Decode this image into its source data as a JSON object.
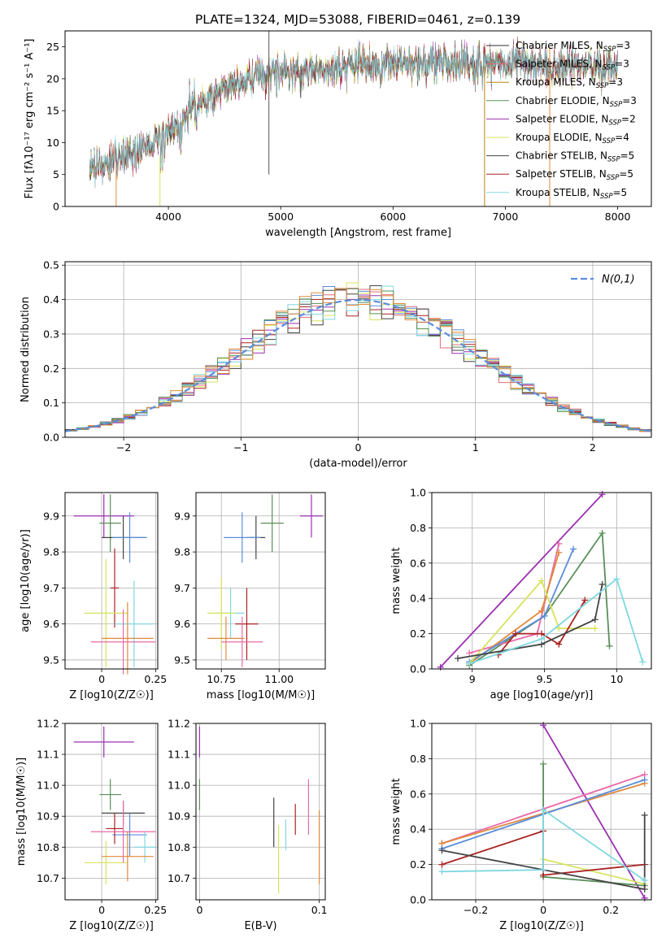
{
  "figure": {
    "title": "PLATE=1324, MJD=53088, FIBERID=0461, z=0.139"
  },
  "chart_data": [
    {
      "type": "line",
      "id": "spectrum",
      "title": "PLATE=1324, MJD=53088, FIBERID=0461, z=0.139",
      "xlabel": "wavelength [Angstrom, rest frame]",
      "ylabel": "Flux [fλ10⁻¹⁷ erg cm⁻² s⁻¹ A⁻¹]",
      "xlim": [
        3080,
        8300
      ],
      "ylim": [
        0,
        27.5
      ],
      "xticks": [
        4000,
        5000,
        6000,
        7000,
        8000
      ],
      "yticks": [
        0,
        5,
        10,
        15,
        20,
        25
      ],
      "grid": false,
      "legend_position": "top-right",
      "continuum": {
        "x": [
          3300,
          3500,
          3700,
          3900,
          4000,
          4200,
          4400,
          4600,
          4800,
          5000,
          5200,
          5500,
          5800,
          6100,
          6400,
          6700,
          7000,
          7300,
          7600,
          8000
        ],
        "y": [
          6.2,
          6.8,
          8.5,
          10.5,
          12.0,
          15.0,
          17.5,
          19.0,
          20.5,
          21.0,
          21.0,
          21.5,
          22.5,
          22.5,
          22.5,
          22.5,
          22.5,
          22.0,
          22.0,
          21.5
        ]
      },
      "series": [
        {
          "name": "Chabrier MILES, N_SSP=3",
          "label_main": "Chabrier MILES, N",
          "label_sub": "SSP",
          "label_tail": "=3",
          "color": "#2e2e2e"
        },
        {
          "name": "Salpeter MILES, N_SSP=3",
          "label_main": "Salpeter MILES, N",
          "label_sub": "SSP",
          "label_tail": "=3",
          "color": "#e06c75"
        },
        {
          "name": "Kroupa MILES, N_SSP=3",
          "label_main": "Kroupa MILES, N",
          "label_sub": "SSP",
          "label_tail": "=3",
          "color": "#b8860b"
        },
        {
          "name": "Chabrier ELODIE, N_SSP=3",
          "label_main": "Chabrier ELODIE, N",
          "label_sub": "SSP",
          "label_tail": "=3",
          "color": "#5a8f5a"
        },
        {
          "name": "Salpeter ELODIE, N_SSP=2",
          "label_main": "Salpeter ELODIE, N",
          "label_sub": "SSP",
          "label_tail": "=2",
          "color": "#9b30b0"
        },
        {
          "name": "Kroupa ELODIE, N_SSP=4",
          "label_main": "Kroupa ELODIE, N",
          "label_sub": "SSP",
          "label_tail": "=4",
          "color": "#d7e35a"
        },
        {
          "name": "Chabrier STELIB, N_SSP=5",
          "label_main": "Chabrier STELIB, N",
          "label_sub": "SSP",
          "label_tail": "=5",
          "color": "#444444"
        },
        {
          "name": "Salpeter STELIB, N_SSP=5",
          "label_main": "Salpeter STELIB, N",
          "label_sub": "SSP",
          "label_tail": "=5",
          "color": "#aa2222"
        },
        {
          "name": "Kroupa STELIB, N_SSP=5",
          "label_main": "Kroupa STELIB, N",
          "label_sub": "SSP",
          "label_tail": "=5",
          "color": "#7fd8e0"
        }
      ]
    },
    {
      "type": "bar",
      "id": "residual-histogram",
      "xlabel": "(data-model)/error",
      "ylabel": "Normed distribution",
      "xlim": [
        -2.5,
        2.5
      ],
      "ylim": [
        0,
        0.51
      ],
      "xticks": [
        -2,
        -1,
        0,
        1,
        2
      ],
      "yticks": [
        0.0,
        0.1,
        0.2,
        0.3,
        0.4,
        0.5
      ],
      "grid": true,
      "legend_position": "top-right",
      "reference_curve": {
        "name": "N(0,1)",
        "color": "#5b8dd9",
        "style": "dashed"
      },
      "bins": 50,
      "series_colors": [
        "#e06c75",
        "#5b8dd9",
        "#d7e35a",
        "#9b30b0",
        "#aa2222",
        "#444444",
        "#7fd8e0",
        "#5a8f5a",
        "#e08a3a"
      ]
    },
    {
      "type": "scatter",
      "id": "age-vs-metallicity",
      "xlabel": "Z [log10(Z/Z☉)]",
      "ylabel": "age [log10(age/yr)]",
      "xlim": [
        -0.17,
        0.26
      ],
      "ylim": [
        9.475,
        9.965
      ],
      "xticks": [
        0.0,
        0.25
      ],
      "yticks": [
        9.5,
        9.6,
        9.7,
        9.8,
        9.9
      ],
      "grid": true,
      "points": [
        {
          "x": 0.01,
          "xerr": 0.14,
          "y": 9.9,
          "yerr": 0.06,
          "color": "#9b30b0"
        },
        {
          "x": 0.04,
          "xerr": 0.05,
          "y": 9.88,
          "yerr": 0.08,
          "color": "#5a8f5a"
        },
        {
          "x": 0.1,
          "xerr": 0.1,
          "y": 9.84,
          "yerr": 0.06,
          "color": "#444444"
        },
        {
          "x": 0.13,
          "xerr": 0.08,
          "y": 9.84,
          "yerr": 0.07,
          "color": "#5b8dd9"
        },
        {
          "x": 0.06,
          "xerr": 0.02,
          "y": 9.7,
          "yerr": 0.11,
          "color": "#aa2222"
        },
        {
          "x": 0.15,
          "xerr": 0.09,
          "y": 9.6,
          "yerr": 0.12,
          "color": "#7fd8e0"
        },
        {
          "x": 0.02,
          "xerr": 0.1,
          "y": 9.63,
          "yerr": 0.15,
          "color": "#d7e35a"
        },
        {
          "x": 0.12,
          "xerr": 0.12,
          "y": 9.56,
          "yerr": 0.1,
          "color": "#e08a3a"
        },
        {
          "x": 0.1,
          "xerr": 0.15,
          "y": 9.55,
          "yerr": 0.09,
          "color": "#e96aa9"
        }
      ]
    },
    {
      "type": "scatter",
      "id": "age-vs-mass",
      "xlabel": "mass [log10(M/M☉)]",
      "ylabel": "",
      "xlim": [
        10.64,
        11.2
      ],
      "ylim": [
        9.475,
        9.965
      ],
      "xticks": [
        10.75,
        11.0
      ],
      "tick_labels": [
        "10.75",
        "11.00"
      ],
      "yticks": [
        9.5,
        9.6,
        9.7,
        9.8,
        9.9
      ],
      "grid": true,
      "points": [
        {
          "x": 11.14,
          "xerr": 0.05,
          "y": 9.9,
          "yerr": 0.06,
          "color": "#9b30b0"
        },
        {
          "x": 10.97,
          "xerr": 0.05,
          "y": 9.88,
          "yerr": 0.08,
          "color": "#5a8f5a"
        },
        {
          "x": 10.9,
          "xerr": 0.04,
          "y": 9.84,
          "yerr": 0.06,
          "color": "#444444"
        },
        {
          "x": 10.84,
          "xerr": 0.08,
          "y": 9.84,
          "yerr": 0.07,
          "color": "#5b8dd9"
        },
        {
          "x": 10.86,
          "xerr": 0.05,
          "y": 9.6,
          "yerr": 0.1,
          "color": "#aa2222"
        },
        {
          "x": 10.79,
          "xerr": 0.06,
          "y": 9.63,
          "yerr": 0.07,
          "color": "#7fd8e0"
        },
        {
          "x": 10.75,
          "xerr": 0.06,
          "y": 9.63,
          "yerr": 0.1,
          "color": "#d7e35a"
        },
        {
          "x": 10.77,
          "xerr": 0.08,
          "y": 9.56,
          "yerr": 0.06,
          "color": "#e08a3a"
        },
        {
          "x": 10.84,
          "xerr": 0.09,
          "y": 9.55,
          "yerr": 0.07,
          "color": "#e96aa9"
        }
      ]
    },
    {
      "type": "line",
      "id": "mass-weight-vs-age",
      "xlabel": "age [log10(age/yr)]",
      "ylabel": "mass weight",
      "xlim": [
        8.72,
        10.24
      ],
      "ylim": [
        0,
        1.0
      ],
      "xticks": [
        9.0,
        9.5,
        10.0
      ],
      "yticks": [
        0.0,
        0.2,
        0.4,
        0.6,
        0.8,
        1.0
      ],
      "grid": true,
      "series": [
        {
          "color": "#9b30b0",
          "x": [
            8.78,
            9.9
          ],
          "y": [
            0.01,
            0.99
          ]
        },
        {
          "color": "#5a8f5a",
          "x": [
            8.98,
            9.5,
            9.9,
            9.95
          ],
          "y": [
            0.02,
            0.3,
            0.77,
            0.13
          ]
        },
        {
          "color": "#e96aa9",
          "x": [
            8.98,
            9.45,
            9.6
          ],
          "y": [
            0.09,
            0.2,
            0.71
          ]
        },
        {
          "color": "#e08a3a",
          "x": [
            8.98,
            9.48,
            9.6
          ],
          "y": [
            0.03,
            0.33,
            0.66
          ]
        },
        {
          "color": "#5b8dd9",
          "x": [
            8.98,
            9.5,
            9.7
          ],
          "y": [
            0.04,
            0.3,
            0.68
          ]
        },
        {
          "color": "#d7e35a",
          "x": [
            8.98,
            9.48,
            9.6,
            9.85
          ],
          "y": [
            0.03,
            0.5,
            0.23,
            0.23
          ]
        },
        {
          "color": "#aa2222",
          "x": [
            9.18,
            9.3,
            9.48,
            9.6,
            9.78
          ],
          "y": [
            0.08,
            0.2,
            0.2,
            0.14,
            0.39
          ]
        },
        {
          "color": "#444444",
          "x": [
            8.9,
            9.48,
            9.85,
            9.9
          ],
          "y": [
            0.06,
            0.14,
            0.28,
            0.48
          ]
        },
        {
          "color": "#7fd8e0",
          "x": [
            8.98,
            9.48,
            10.0,
            10.18
          ],
          "y": [
            0.03,
            0.17,
            0.51,
            0.04
          ]
        }
      ]
    },
    {
      "type": "scatter",
      "id": "mass-vs-metallicity",
      "xlabel": "Z [log10(Z/Z☉)]",
      "ylabel": "mass [log10(M/M☉)]",
      "xlim": [
        -0.17,
        0.26
      ],
      "ylim": [
        10.63,
        11.2
      ],
      "xticks": [
        0.0,
        0.25
      ],
      "yticks": [
        10.7,
        10.8,
        10.9,
        11.0,
        11.1,
        11.2
      ],
      "grid": true,
      "points": [
        {
          "x": 0.01,
          "xerr": 0.14,
          "y": 11.14,
          "yerr": 0.05,
          "color": "#9b30b0"
        },
        {
          "x": 0.04,
          "xerr": 0.05,
          "y": 10.97,
          "yerr": 0.05,
          "color": "#5a8f5a"
        },
        {
          "x": 0.1,
          "xerr": 0.1,
          "y": 10.91,
          "yerr": 0.04,
          "color": "#444444"
        },
        {
          "x": 0.13,
          "xerr": 0.08,
          "y": 10.84,
          "yerr": 0.07,
          "color": "#5b8dd9"
        },
        {
          "x": 0.06,
          "xerr": 0.04,
          "y": 10.86,
          "yerr": 0.05,
          "color": "#aa2222"
        },
        {
          "x": 0.2,
          "xerr": 0.05,
          "y": 10.8,
          "yerr": 0.05,
          "color": "#7fd8e0"
        },
        {
          "x": 0.02,
          "xerr": 0.1,
          "y": 10.75,
          "yerr": 0.07,
          "color": "#d7e35a"
        },
        {
          "x": 0.12,
          "xerr": 0.12,
          "y": 10.77,
          "yerr": 0.08,
          "color": "#e08a3a"
        },
        {
          "x": 0.1,
          "xerr": 0.15,
          "y": 10.85,
          "yerr": 0.1,
          "color": "#e96aa9"
        }
      ]
    },
    {
      "type": "scatter",
      "id": "mass-vs-ebv",
      "xlabel": "E(B-V)",
      "ylabel": "",
      "xlim": [
        -0.003,
        0.105
      ],
      "ylim": [
        10.63,
        11.2
      ],
      "xticks": [
        0.0,
        0.1
      ],
      "yticks": [
        10.7,
        10.8,
        10.9,
        11.0,
        11.1,
        11.2
      ],
      "grid": true,
      "points": [
        {
          "x": 0.0,
          "y": 11.14,
          "yerr": 0.05,
          "color": "#9b30b0"
        },
        {
          "x": 0.0,
          "y": 10.97,
          "yerr": 0.05,
          "color": "#5a8f5a"
        },
        {
          "x": 0.062,
          "y": 10.88,
          "yerr": 0.08,
          "color": "#444444"
        },
        {
          "x": 0.066,
          "y": 10.76,
          "yerr": 0.11,
          "color": "#d7e35a"
        },
        {
          "x": 0.072,
          "y": 10.84,
          "yerr": 0.05,
          "color": "#7fd8e0"
        },
        {
          "x": 0.08,
          "y": 10.89,
          "yerr": 0.05,
          "color": "#aa2222"
        },
        {
          "x": 0.091,
          "y": 10.93,
          "yerr": 0.09,
          "color": "#e96aa9"
        },
        {
          "x": 0.1,
          "y": 10.8,
          "yerr": 0.12,
          "color": "#e08a3a"
        }
      ]
    },
    {
      "type": "line",
      "id": "mass-weight-vs-metallicity",
      "xlabel": "Z [log10(Z/Z☉)]",
      "ylabel": "mass weight",
      "xlim": [
        -0.33,
        0.32
      ],
      "ylim": [
        0,
        1.0
      ],
      "xticks": [
        -0.2,
        0.0,
        0.2
      ],
      "yticks": [
        0.0,
        0.2,
        0.4,
        0.6,
        0.8,
        1.0
      ],
      "grid": true,
      "series": [
        {
          "color": "#9b30b0",
          "x": [
            0.0,
            0.3
          ],
          "y": [
            0.99,
            0.01
          ]
        },
        {
          "color": "#5a8f5a",
          "x": [
            0.0,
            0.0,
            0.3
          ],
          "y": [
            0.77,
            0.13,
            0.08
          ]
        },
        {
          "color": "#e96aa9",
          "x": [
            -0.3,
            0.3
          ],
          "y": [
            0.32,
            0.71
          ]
        },
        {
          "color": "#e08a3a",
          "x": [
            -0.3,
            0.3
          ],
          "y": [
            0.32,
            0.66
          ]
        },
        {
          "color": "#5b8dd9",
          "x": [
            -0.3,
            0.3
          ],
          "y": [
            0.29,
            0.68
          ]
        },
        {
          "color": "#d7e35a",
          "x": [
            0.0,
            0.3
          ],
          "y": [
            0.23,
            0.09
          ]
        },
        {
          "color": "#aa2222",
          "x": [
            -0.3,
            0.0,
            0.0,
            0.3
          ],
          "y": [
            0.2,
            0.39,
            0.14,
            0.2
          ]
        },
        {
          "color": "#444444",
          "x": [
            -0.3,
            0.3,
            0.3
          ],
          "y": [
            0.28,
            0.06,
            0.48
          ]
        },
        {
          "color": "#7fd8e0",
          "x": [
            -0.3,
            0.0,
            0.0,
            0.3
          ],
          "y": [
            0.16,
            0.17,
            0.51,
            0.11
          ]
        }
      ]
    }
  ]
}
